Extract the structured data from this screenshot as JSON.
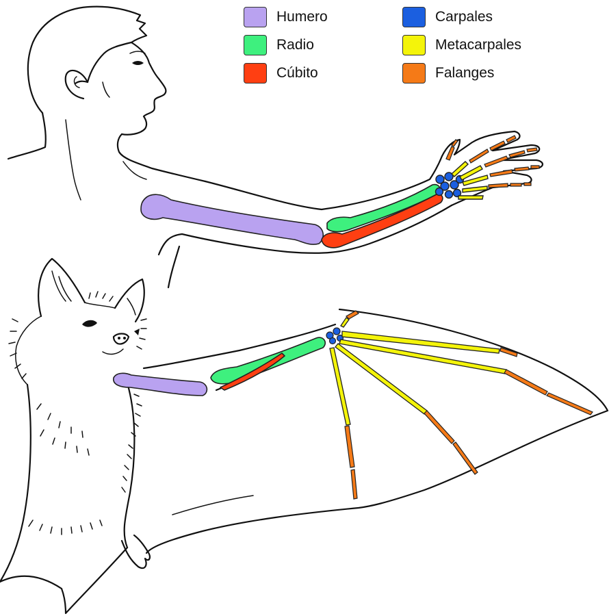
{
  "legend": {
    "items": [
      {
        "label": "Humero",
        "color": "#b9a2f0"
      },
      {
        "label": "Radio",
        "color": "#3ef07e"
      },
      {
        "label": "Cúbito",
        "color": "#ff3f12"
      },
      {
        "label": "Carpales",
        "color": "#1b5fe0"
      },
      {
        "label": "Metacarpales",
        "color": "#f4f40a"
      },
      {
        "label": "Falanges",
        "color": "#f57a17"
      }
    ]
  },
  "colors": {
    "outline": "#111111",
    "background": "#ffffff"
  }
}
